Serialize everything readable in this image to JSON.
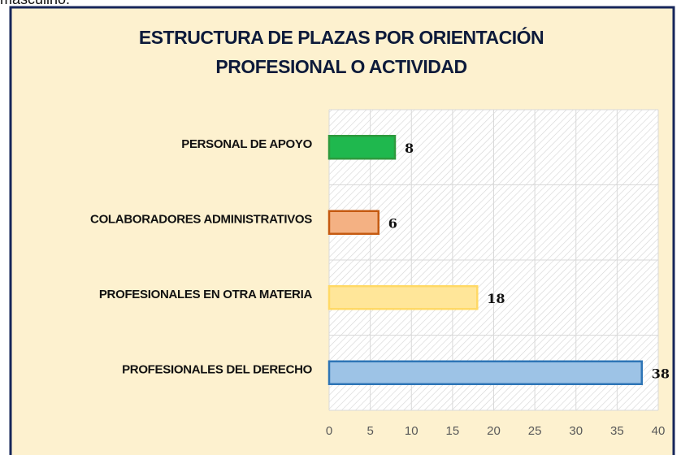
{
  "caption_fragment": "masculino.",
  "chart_data": {
    "type": "hbar",
    "title": [
      "ESTRUCTURA DE PLAZAS POR ORIENTACIÓN",
      "PROFESIONAL O ACTIVIDAD"
    ],
    "categories": [
      "PERSONAL DE APOYO",
      "COLABORADORES ADMINISTRATIVOS",
      "PROFESIONALES EN OTRA MATERIA",
      "PROFESIONALES DEL DERECHO"
    ],
    "values": [
      8,
      6,
      18,
      38
    ],
    "colors": [
      "#1fb84e",
      "#f4b183",
      "#ffe699",
      "#9dc3e6"
    ],
    "border_colors": [
      "#2e9a3e",
      "#c55a11",
      "#ffd966",
      "#2e75b6"
    ],
    "xlim": [
      0,
      40
    ],
    "xticks": [
      0,
      5,
      10,
      15,
      20,
      25,
      30,
      35,
      40
    ],
    "grid": true
  }
}
